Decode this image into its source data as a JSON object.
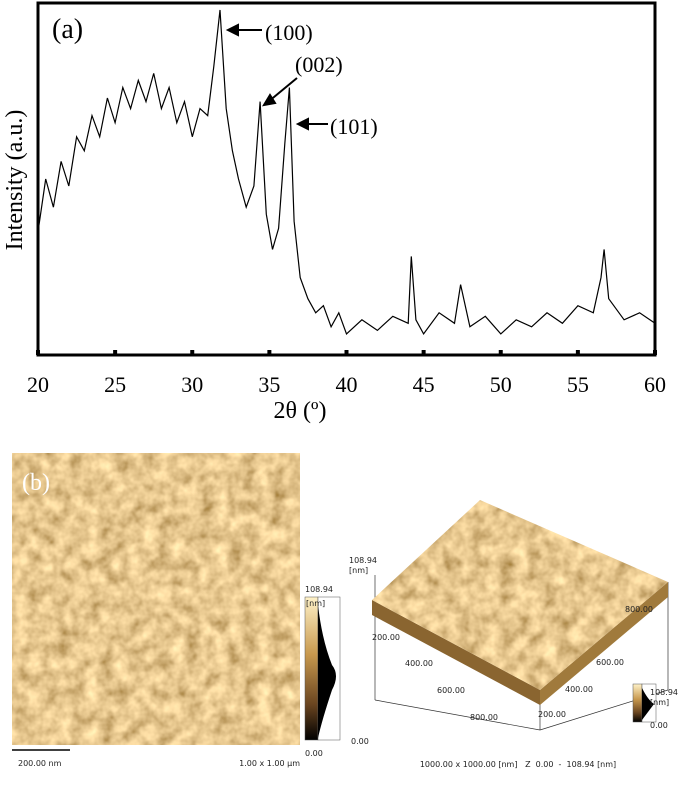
{
  "chart_data": {
    "type": "line",
    "xlabel": "2θ (º)",
    "ylabel": "Intensity (a.u.)",
    "color": "#000000",
    "xlim": [
      20,
      60
    ],
    "xticks": [
      20,
      25,
      30,
      35,
      40,
      45,
      50,
      55,
      60
    ],
    "ylim": [
      0,
      100
    ],
    "annotations": [
      "(a)",
      "(100)",
      "(002)",
      "(101)"
    ],
    "x": [
      20,
      20.5,
      21,
      21.5,
      22,
      22.5,
      23,
      23.5,
      24,
      24.5,
      25,
      25.5,
      26,
      26.5,
      27,
      27.5,
      28,
      28.5,
      29,
      29.5,
      30,
      30.5,
      31,
      31.4,
      31.8,
      32.2,
      32.6,
      33,
      33.5,
      34,
      34.4,
      34.8,
      35.2,
      35.6,
      36,
      36.3,
      36.6,
      37,
      37.5,
      38,
      38.5,
      39,
      39.5,
      40,
      41,
      42,
      43,
      44,
      44.2,
      44.5,
      45,
      46,
      47,
      47.4,
      48,
      49,
      50,
      51,
      52,
      53,
      54,
      55,
      56,
      56.5,
      56.7,
      57,
      58,
      59,
      60
    ],
    "values": [
      35,
      50,
      42,
      55,
      48,
      62,
      58,
      68,
      62,
      73,
      66,
      76,
      70,
      78,
      72,
      80,
      70,
      76,
      66,
      72,
      62,
      70,
      68,
      82,
      98,
      70,
      58,
      50,
      42,
      48,
      72,
      40,
      30,
      36,
      60,
      76,
      38,
      22,
      16,
      12,
      14,
      8,
      12,
      6,
      10,
      7,
      11,
      9,
      28,
      10,
      6,
      12,
      9,
      20,
      8,
      11,
      6,
      10,
      8,
      12,
      9,
      14,
      12,
      22,
      30,
      16,
      10,
      12,
      9
    ]
  },
  "afm": {
    "label": "(b)",
    "map2d": {
      "colorbar_max": "108.94",
      "colorbar_unit": "[nm]",
      "colorbar_min": "0.00",
      "scale_bar": "200.00 nm",
      "size": "1.00 x 1.00 µm"
    },
    "map3d": {
      "z_max": "108.94",
      "z_unit": "[nm]",
      "z_min": "0.00",
      "left_ticks": [
        "200.00",
        "400.00",
        "600.00",
        "800.00"
      ],
      "right_ticks": [
        "800.00",
        "600.00",
        "400.00",
        "200.00"
      ],
      "colorbar_max": "108.94",
      "colorbar_unit": "[nm]",
      "colorbar_min": "0.00",
      "caption": "1000.00 x 1000.00 [nm]   Z  0.00  -  108.94 [nm]"
    }
  }
}
